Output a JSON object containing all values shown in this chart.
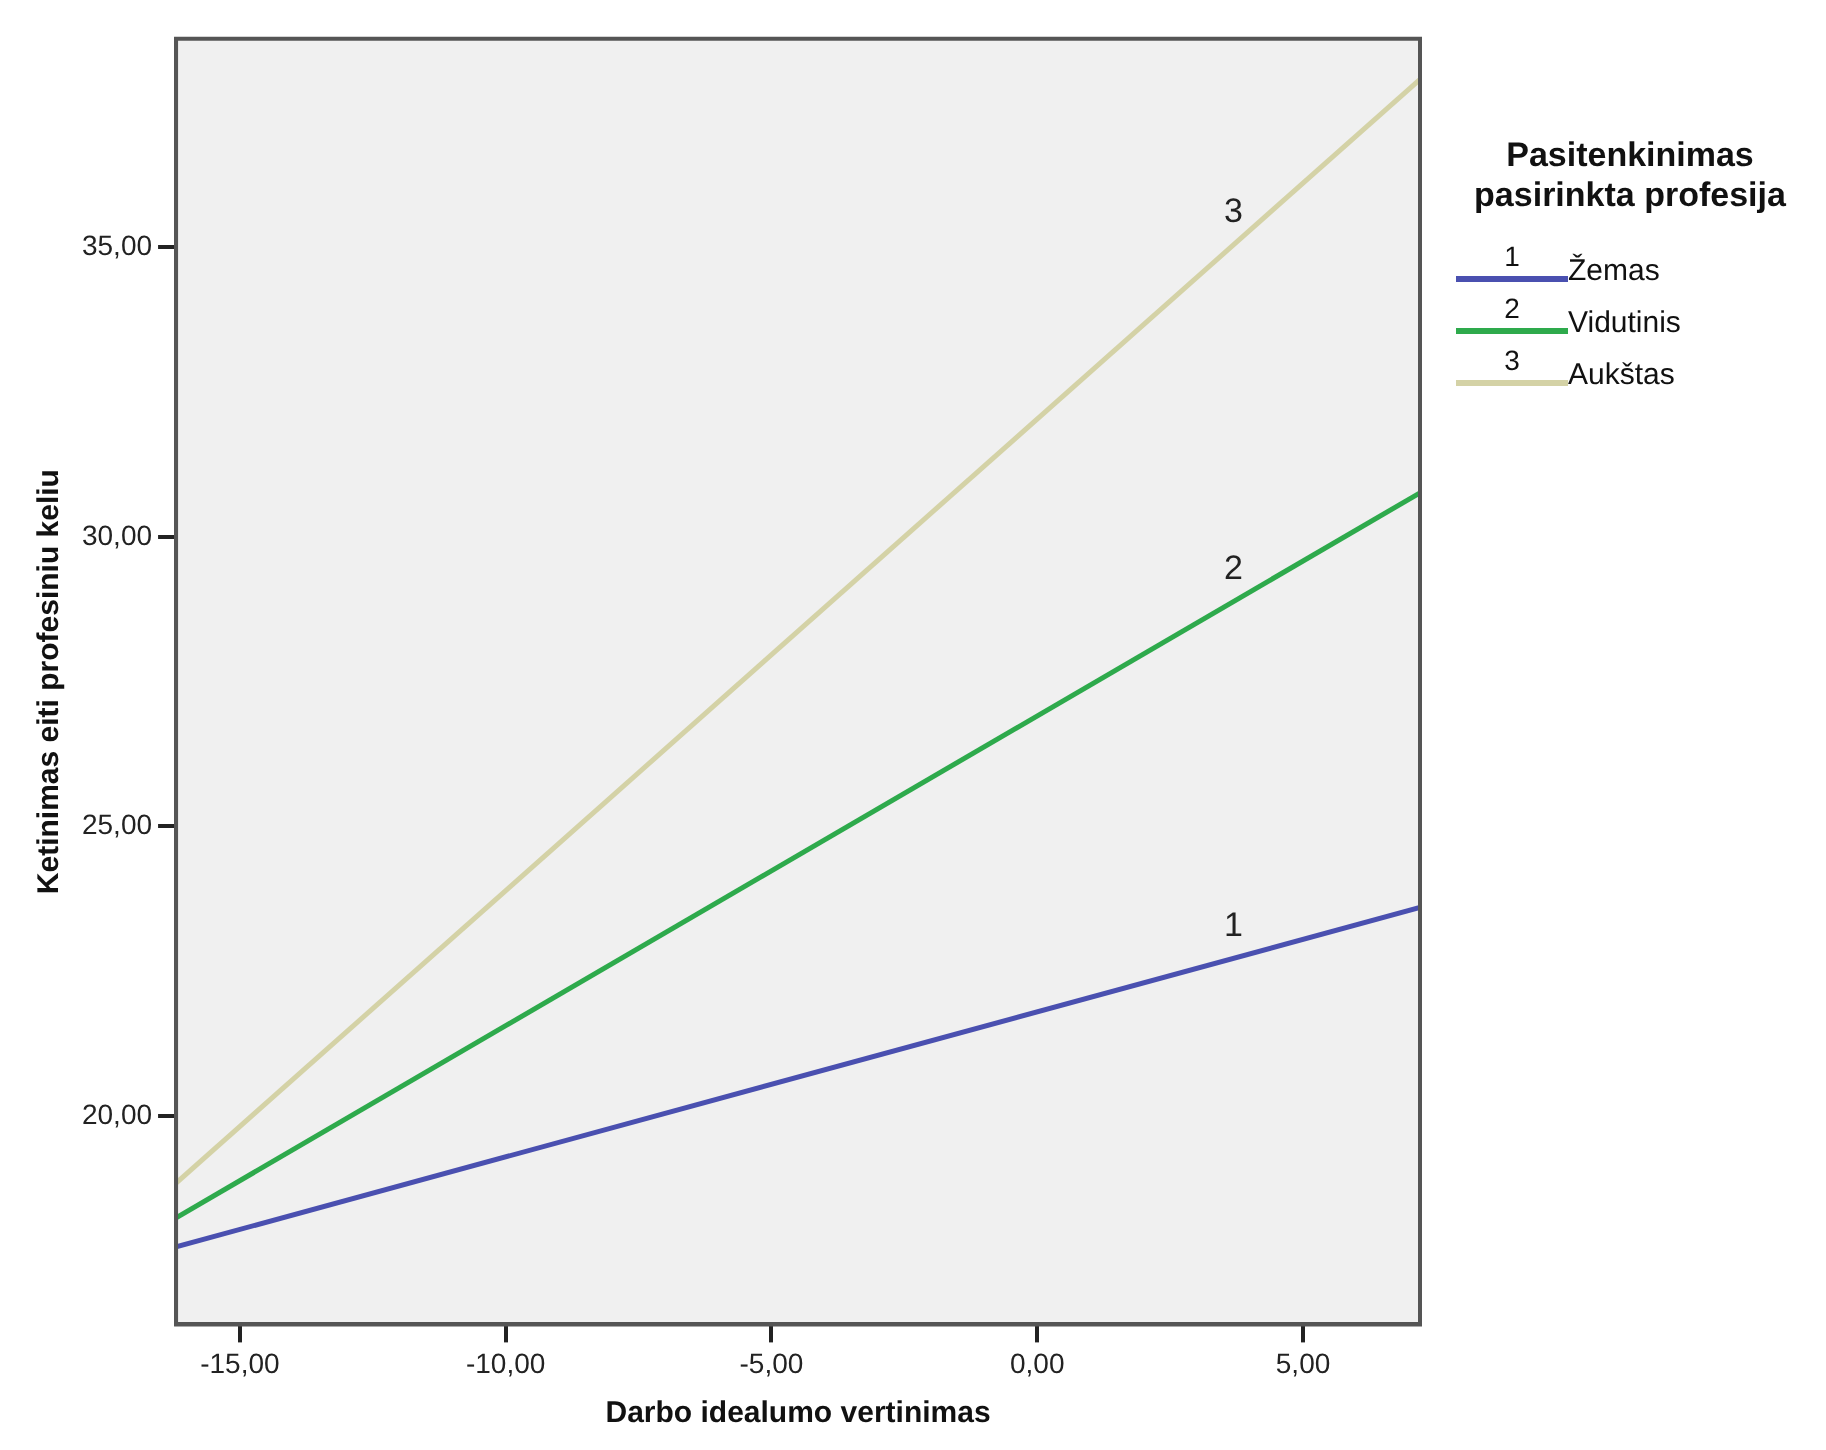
{
  "chart_data": {
    "type": "line",
    "xlabel": "Darbo idealumo vertinimas",
    "ylabel": "Ketinimas eiti profesiniu keliu",
    "legend_title": "Pasitenkinimas pasirinkta profesija",
    "legend": "right",
    "marker": "none",
    "line_style": "solid",
    "x": [
      -16.2,
      7.2
    ],
    "series": [
      {
        "name": "Žemas",
        "color": "#4a50b0",
        "values": [
          17.74,
          23.6
        ]
      },
      {
        "name": "Vidutinis",
        "color": "#2eaa4c",
        "values": [
          18.24,
          30.76
        ]
      },
      {
        "name": "Aukštas",
        "color": "#d4d2a6",
        "values": [
          18.84,
          37.9
        ]
      }
    ],
    "annotations": [
      "1",
      "2",
      "3"
    ],
    "xlim": [
      -16.2,
      7.2
    ],
    "xticks": [
      {
        "value": -15,
        "label": "-15,00"
      },
      {
        "value": -10,
        "label": "-10,00"
      },
      {
        "value": -5,
        "label": "-5,00"
      },
      {
        "value": 0,
        "label": "0,00"
      },
      {
        "value": 5,
        "label": "5,00"
      }
    ],
    "ylim": [
      16.4,
      38.6
    ],
    "yticks": [
      {
        "value": 20,
        "label": "20,00"
      },
      {
        "value": 25,
        "label": "25,00"
      },
      {
        "value": 30,
        "label": "30,00"
      },
      {
        "value": 35,
        "label": "35,00"
      }
    ]
  }
}
